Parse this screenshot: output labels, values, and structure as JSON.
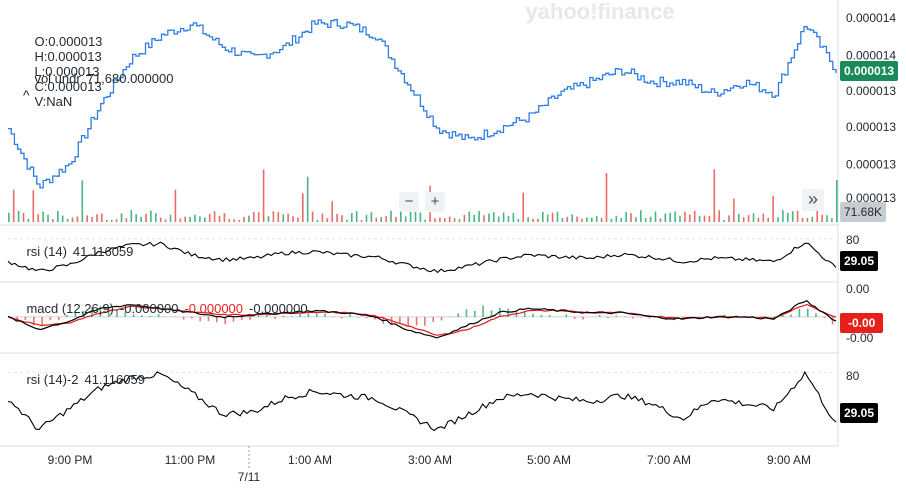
{
  "watermark": "yahoo!finance",
  "ohlc": {
    "open_label": "O:",
    "open": "0.000013",
    "high_label": "H:",
    "high": "0.000013",
    "low_label": "L:",
    "low": "0.000013",
    "close_label": "C:",
    "close": "0.000013",
    "volume_label": "V:",
    "volume": "NaN"
  },
  "vol_legend": {
    "label": "vol undr",
    "value": "71,680.000000"
  },
  "collapse_glyph": "^",
  "controls": {
    "zoom_out": "−",
    "zoom_in": "+",
    "scroll_right": "»"
  },
  "price_axis": {
    "ticks": [
      {
        "label": "0.000014",
        "frac": 0.03
      },
      {
        "label": "0.000014",
        "frac": 0.22
      },
      {
        "label": "0.000013",
        "frac": 0.4
      },
      {
        "label": "0.000013",
        "frac": 0.58
      },
      {
        "label": "0.000013",
        "frac": 0.77
      },
      {
        "label": "0.000013",
        "frac": 0.94
      }
    ],
    "last_price": "0.000013",
    "last_volume": "71.68K"
  },
  "rsi_panel": {
    "label": "rsi (14)",
    "value": "41.116059",
    "tick": "80",
    "badge": "29.05"
  },
  "macd_panel": {
    "label": "macd (12,26,9)",
    "value1": "-0.000000",
    "value2": "-0.000000",
    "value3": "-0.000000",
    "tick_top": "0.00",
    "tick_bottom": "-0.00",
    "badge": "-0.00"
  },
  "rsi2_panel": {
    "label": "rsi (14)-2",
    "value": "41.116059",
    "tick": "80",
    "badge": "29.05"
  },
  "time_axis": {
    "labels": [
      "9:00 PM",
      "11:00 PM",
      "1:00 AM",
      "3:00 AM",
      "5:00 AM",
      "7:00 AM",
      "9:00 AM"
    ],
    "date_marker": "7/11"
  },
  "colors": {
    "price_line": "#2f7de1",
    "up_volume": "#27a96c",
    "down_volume": "#e8514b",
    "rsi_line": "#000000",
    "macd_line": "#000000",
    "signal_line": "#e01b1b",
    "last_price_badge": "#1b8a5a",
    "macd_badge": "#e8201c",
    "value_red": "#e8201c"
  },
  "chart_data": [
    {
      "type": "line",
      "name_hint": "price",
      "x": [
        "8:00 PM",
        "8:30 PM",
        "9:00 PM",
        "9:30 PM",
        "10:00 PM",
        "10:30 PM",
        "11:00 PM",
        "11:30 PM",
        "12:00 AM",
        "12:30 AM",
        "1:00 AM",
        "1:30 AM",
        "2:00 AM",
        "2:30 AM",
        "3:00 AM",
        "3:30 AM",
        "4:00 AM",
        "4:30 AM",
        "5:00 AM",
        "5:30 AM",
        "6:00 AM",
        "6:30 AM",
        "7:00 AM",
        "7:30 AM",
        "8:00 AM",
        "8:30 AM",
        "9:00 AM",
        "9:30 AM"
      ],
      "y": [
        1.32e-05,
        1.27e-05,
        1.29e-05,
        1.34e-05,
        1.38e-05,
        1.4e-05,
        1.41e-05,
        1.39e-05,
        1.38e-05,
        1.39e-05,
        1.41e-05,
        1.41e-05,
        1.4e-05,
        1.36e-05,
        1.32e-05,
        1.31e-05,
        1.32e-05,
        1.33e-05,
        1.35e-05,
        1.36e-05,
        1.37e-05,
        1.36e-05,
        1.36e-05,
        1.35e-05,
        1.36e-05,
        1.35e-05,
        1.41e-05,
        1.37e-05
      ],
      "ylim": [
        1.25e-05,
        1.42e-05
      ]
    },
    {
      "type": "bar",
      "name_hint": "volume",
      "ylim": [
        0,
        100
      ]
    },
    {
      "type": "line",
      "name_hint": "rsi",
      "y": [
        45,
        30,
        40,
        60,
        70,
        72,
        55,
        48,
        50,
        58,
        60,
        55,
        52,
        40,
        30,
        38,
        48,
        55,
        52,
        50,
        56,
        52,
        45,
        50,
        48,
        45,
        75,
        35
      ],
      "ylim": [
        20,
        90
      ],
      "reference": 80
    },
    {
      "type": "line",
      "name_hint": "macd",
      "y": [
        0,
        -0.3,
        -0.1,
        0.2,
        0.3,
        0.2,
        0.1,
        0,
        0.05,
        0.1,
        0.15,
        0.1,
        0,
        -0.3,
        -0.5,
        -0.2,
        0.1,
        0.2,
        0.15,
        0.1,
        0.1,
        0,
        -0.05,
        0,
        0,
        -0.05,
        0.4,
        -0.1
      ],
      "signal": [
        0,
        -0.2,
        -0.15,
        0.1,
        0.25,
        0.2,
        0.12,
        0.05,
        0.05,
        0.08,
        0.12,
        0.1,
        0.02,
        -0.2,
        -0.45,
        -0.3,
        0,
        0.15,
        0.15,
        0.1,
        0.1,
        0.02,
        -0.03,
        0,
        0,
        -0.03,
        0.3,
        0
      ],
      "ylim": [
        -0.7,
        0.6
      ]
    },
    {
      "type": "line",
      "name_hint": "rsi-2",
      "y": [
        55,
        25,
        45,
        65,
        75,
        78,
        60,
        40,
        42,
        55,
        62,
        58,
        55,
        40,
        25,
        40,
        55,
        60,
        55,
        52,
        58,
        50,
        35,
        55,
        50,
        45,
        80,
        30
      ],
      "ylim": [
        15,
        90
      ],
      "reference": 80
    }
  ]
}
